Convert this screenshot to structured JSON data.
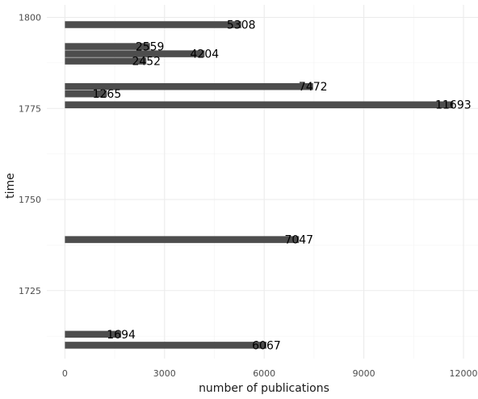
{
  "chart_data": {
    "type": "bar",
    "orientation": "horizontal",
    "xlabel": "number of publications",
    "ylabel": "time",
    "xlim": [
      0,
      12000
    ],
    "ylim": [
      1709,
      1801
    ],
    "x_ticks": [
      "0",
      "3000",
      "6000",
      "9000",
      "12000"
    ],
    "y_ticks": [
      "1725",
      "1750",
      "1775",
      "1800"
    ],
    "grid": true,
    "colors": {
      "bar": "#4d4d4d",
      "grid": "#ebebeb",
      "label": "#000000"
    },
    "points": [
      {
        "year": 1710,
        "value": 6067
      },
      {
        "year": 1713,
        "value": 1694
      },
      {
        "year": 1739,
        "value": 7047
      },
      {
        "year": 1776,
        "value": 11693
      },
      {
        "year": 1779,
        "value": 1265
      },
      {
        "year": 1781,
        "value": 7472
      },
      {
        "year": 1788,
        "value": 2452
      },
      {
        "year": 1790,
        "value": 4204
      },
      {
        "year": 1792,
        "value": 2559
      },
      {
        "year": 1798,
        "value": 5308
      }
    ]
  }
}
